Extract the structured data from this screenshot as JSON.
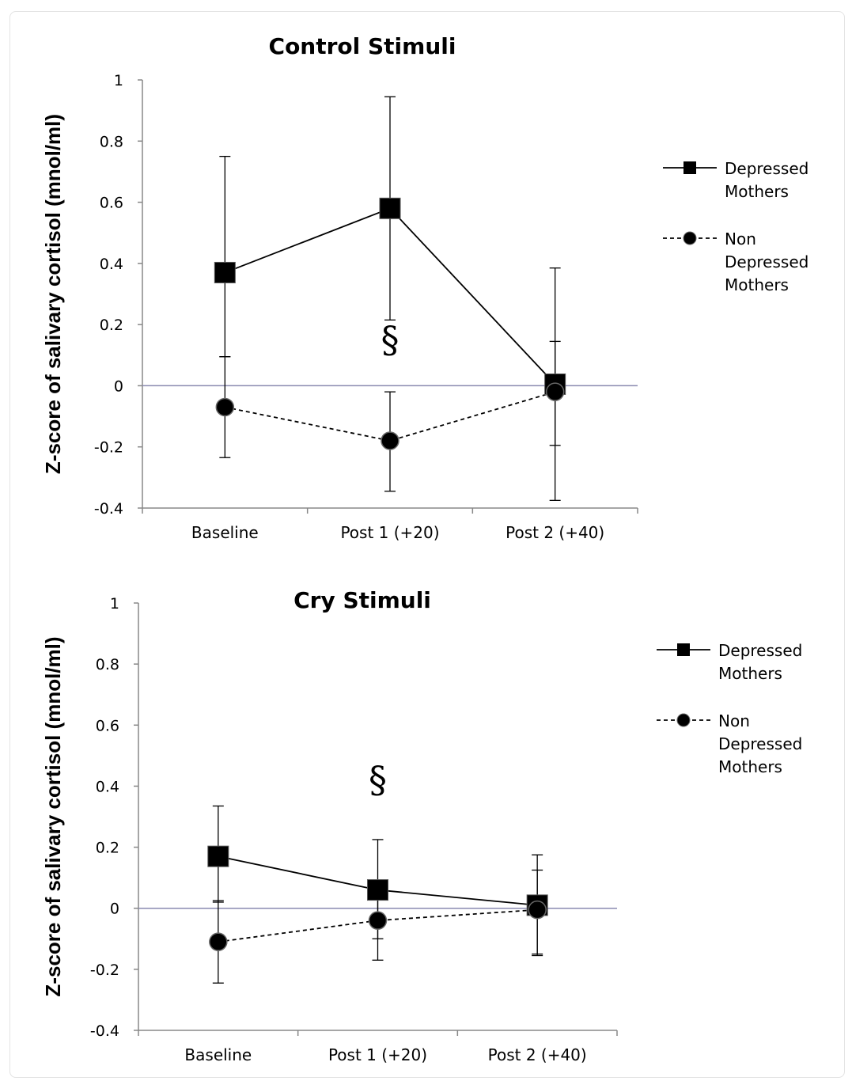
{
  "chart_data": [
    {
      "type": "line",
      "title": "Control Stimuli",
      "ylabel": "Z-score of salivary cortisol (mnol/ml)",
      "xlabel": "",
      "categories": [
        "Baseline",
        "Post 1 (+20)",
        "Post 2 (+40)"
      ],
      "ylim": [
        -0.4,
        1
      ],
      "yticks": [
        -0.4,
        -0.2,
        0,
        0.2,
        0.4,
        0.6,
        0.8,
        1
      ],
      "ytick_labels": [
        "-0.4",
        "-0.2",
        "0",
        "0.2",
        "0.4",
        "0.6",
        "0.8",
        "1"
      ],
      "grid": false,
      "legend_position": "right",
      "annotation": "§",
      "annotation_at": {
        "category": 1,
        "y": 0.11
      },
      "series": [
        {
          "name_lines": [
            "Depressed",
            "Mothers"
          ],
          "marker": "square",
          "line_style": "solid",
          "values": [
            0.37,
            0.58,
            0.005
          ],
          "err_low": [
            0.095,
            0.215,
            -0.195
          ],
          "err_high": [
            0.75,
            0.945,
            0.385
          ]
        },
        {
          "name_lines": [
            "Non",
            "Depressed",
            "Mothers"
          ],
          "marker": "circle",
          "line_style": "dashed",
          "values": [
            -0.07,
            -0.18,
            -0.02
          ],
          "err_low": [
            -0.235,
            -0.345,
            -0.375
          ],
          "err_high": [
            0.095,
            -0.02,
            0.145
          ]
        }
      ]
    },
    {
      "type": "line",
      "title": "Cry Stimuli",
      "ylabel": "Z-score of salivary cortisol (mnol/ml)",
      "xlabel": "",
      "categories": [
        "Baseline",
        "Post 1 (+20)",
        "Post 2 (+40)"
      ],
      "ylim": [
        -0.4,
        1
      ],
      "yticks": [
        -0.4,
        -0.2,
        0,
        0.2,
        0.4,
        0.6,
        0.8,
        1
      ],
      "ytick_labels": [
        "-0.4",
        "-0.2",
        "0",
        "0.2",
        "0.4",
        "0.6",
        "0.8",
        "1"
      ],
      "grid": false,
      "legend_position": "right",
      "annotation": "§",
      "annotation_at": {
        "category": 1,
        "y": 0.38
      },
      "series": [
        {
          "name_lines": [
            "Depressed",
            "Mothers"
          ],
          "marker": "square",
          "line_style": "solid",
          "values": [
            0.17,
            0.06,
            0.01
          ],
          "err_low": [
            0.02,
            -0.1,
            -0.15
          ],
          "err_high": [
            0.335,
            0.225,
            0.175
          ]
        },
        {
          "name_lines": [
            "Non",
            "Depressed",
            "Mothers"
          ],
          "marker": "circle",
          "line_style": "dashed",
          "values": [
            -0.11,
            -0.04,
            -0.005
          ],
          "err_low": [
            -0.245,
            -0.17,
            -0.155
          ],
          "err_high": [
            0.025,
            0.03,
            0.125
          ]
        }
      ]
    }
  ]
}
